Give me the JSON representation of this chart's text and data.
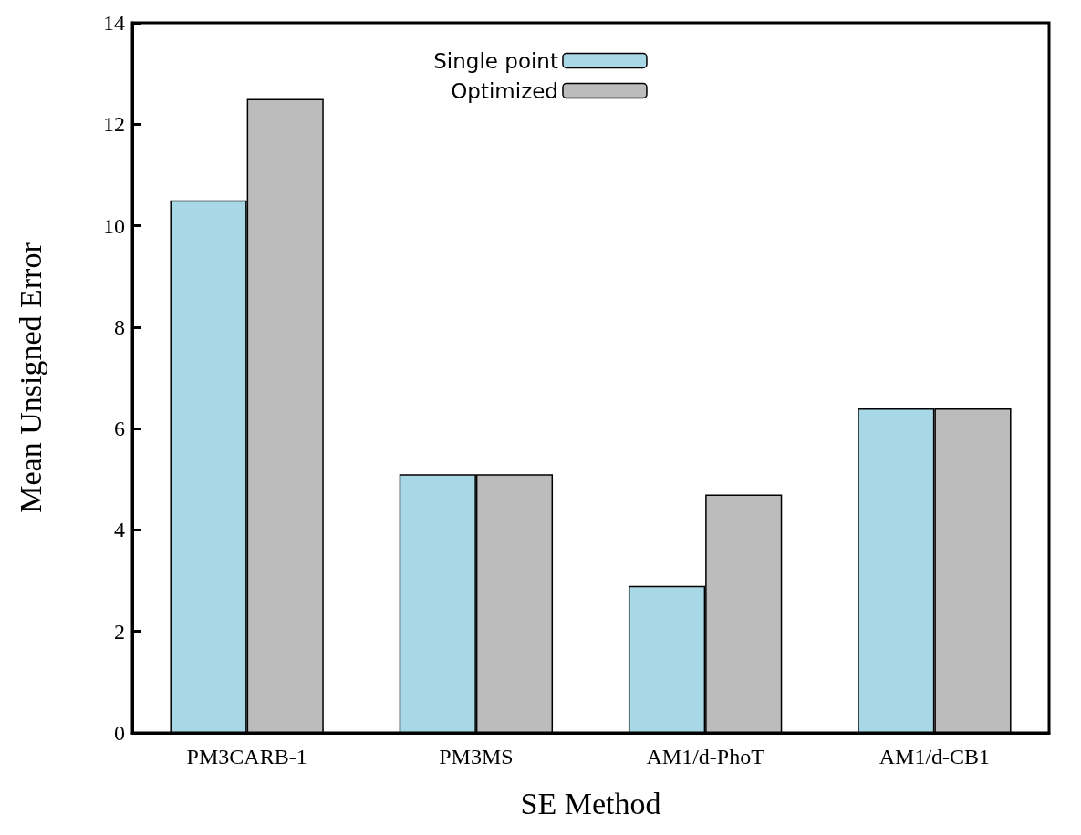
{
  "chart_data": {
    "type": "bar",
    "xlabel": "SE Method",
    "ylabel": "Mean Unsigned Error",
    "categories": [
      "PM3CARB-1",
      "PM3MS",
      "AM1/d-PhoT",
      "AM1/d-CB1"
    ],
    "series": [
      {
        "name": "Single point",
        "color": "#a8d8e6",
        "values": [
          10.5,
          5.1,
          2.9,
          6.4
        ]
      },
      {
        "name": "Optimized",
        "color": "#bcbcbc",
        "values": [
          12.5,
          5.1,
          4.7,
          6.4
        ]
      }
    ],
    "ylim": [
      0,
      14
    ],
    "yticks": [
      0,
      2,
      4,
      6,
      8,
      10,
      12,
      14
    ],
    "grid": false,
    "legend": "top"
  }
}
